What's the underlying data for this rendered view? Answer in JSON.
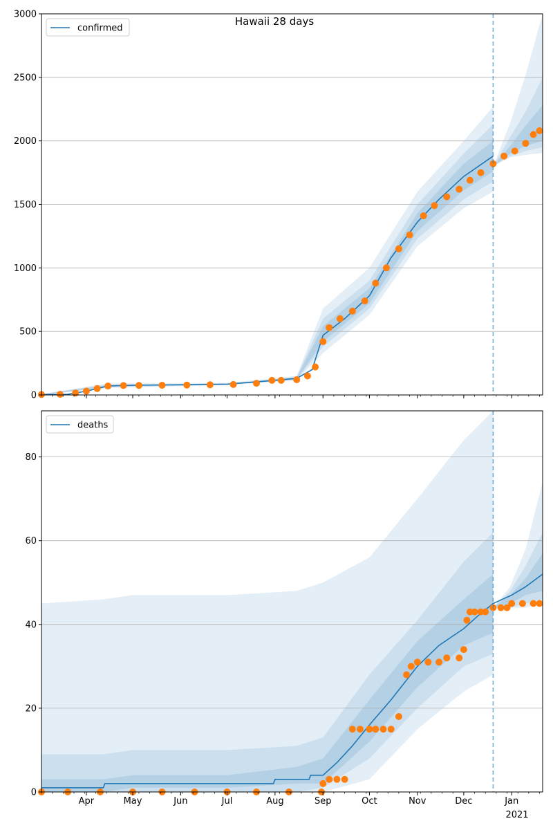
{
  "chart_data": [
    {
      "type": "line",
      "title": "Hawaii 28 days",
      "legend": {
        "label": "confirmed",
        "placement": "top-left"
      },
      "grid": "horizontal",
      "ylim": [
        0,
        3000
      ],
      "yticks": [
        0,
        500,
        1000,
        1500,
        2000,
        2500,
        3000
      ],
      "xlim": [
        "2020-03-03",
        "2021-01-21"
      ],
      "forecast_start": "2020-12-20",
      "series": [
        {
          "name": "confirmed",
          "style": "line",
          "x": [
            "2020-03-03",
            "2020-03-20",
            "2020-04-01",
            "2020-04-15",
            "2020-05-01",
            "2020-06-01",
            "2020-07-01",
            "2020-07-25",
            "2020-08-15",
            "2020-08-25",
            "2020-09-01",
            "2020-09-15",
            "2020-10-01",
            "2020-10-15",
            "2020-11-01",
            "2020-11-15",
            "2020-12-01",
            "2020-12-20"
          ],
          "y": [
            2,
            5,
            30,
            70,
            76,
            80,
            85,
            108,
            130,
            200,
            470,
            600,
            780,
            1080,
            1360,
            1540,
            1720,
            1880
          ]
        },
        {
          "style": "points",
          "x": [
            "2020-03-03",
            "2020-03-15",
            "2020-03-25",
            "2020-04-01",
            "2020-04-08",
            "2020-04-15",
            "2020-04-25",
            "2020-05-05",
            "2020-05-20",
            "2020-06-05",
            "2020-06-20",
            "2020-07-05",
            "2020-07-20",
            "2020-07-30",
            "2020-08-05",
            "2020-08-15",
            "2020-08-22",
            "2020-08-27",
            "2020-09-01",
            "2020-09-05",
            "2020-09-12",
            "2020-09-20",
            "2020-09-28",
            "2020-10-05",
            "2020-10-12",
            "2020-10-20",
            "2020-10-27",
            "2020-11-05",
            "2020-11-12",
            "2020-11-20",
            "2020-11-28",
            "2020-12-05",
            "2020-12-12",
            "2020-12-20",
            "2020-12-27",
            "2021-01-03",
            "2021-01-10",
            "2021-01-15",
            "2021-01-19"
          ],
          "y": [
            3,
            5,
            15,
            30,
            50,
            70,
            74,
            75,
            76,
            78,
            80,
            82,
            92,
            115,
            115,
            120,
            150,
            220,
            420,
            530,
            600,
            660,
            740,
            880,
            1000,
            1150,
            1260,
            1410,
            1490,
            1560,
            1620,
            1690,
            1750,
            1820,
            1880,
            1920,
            1980,
            2050,
            2080
          ]
        }
      ],
      "bands_outer": [
        {
          "x": [
            "2020-03-03",
            "2020-04-15",
            "2020-07-01",
            "2020-08-15",
            "2020-09-01",
            "2020-10-01",
            "2020-11-01",
            "2020-12-01",
            "2020-12-20"
          ],
          "lo": [
            0,
            55,
            78,
            115,
            330,
            630,
            1170,
            1470,
            1600
          ],
          "hi": [
            8,
            90,
            95,
            150,
            680,
            1000,
            1600,
            2000,
            2270
          ]
        },
        {
          "x": [
            "2020-12-20",
            "2020-12-31",
            "2021-01-10",
            "2021-01-21"
          ],
          "lo": [
            1800,
            1870,
            1890,
            1905
          ],
          "hi": [
            1800,
            2140,
            2520,
            3000
          ]
        }
      ],
      "bands_mid": [
        {
          "x": [
            "2020-03-03",
            "2020-04-15",
            "2020-07-01",
            "2020-08-15",
            "2020-09-01",
            "2020-10-01",
            "2020-11-01",
            "2020-12-01",
            "2020-12-20"
          ],
          "lo": [
            0,
            60,
            80,
            118,
            380,
            680,
            1230,
            1540,
            1680
          ],
          "hi": [
            6,
            84,
            90,
            142,
            600,
            900,
            1500,
            1900,
            2130
          ]
        },
        {
          "x": [
            "2020-12-20",
            "2020-12-31",
            "2021-01-10",
            "2021-01-21"
          ],
          "lo": [
            1800,
            1880,
            1920,
            1950
          ],
          "hi": [
            1800,
            2030,
            2230,
            2500
          ]
        }
      ],
      "bands_inner": [
        {
          "x": [
            "2020-03-03",
            "2020-04-15",
            "2020-07-01",
            "2020-08-15",
            "2020-09-01",
            "2020-10-01",
            "2020-11-01",
            "2020-12-01",
            "2020-12-20"
          ],
          "lo": [
            1,
            66,
            82,
            122,
            420,
            720,
            1290,
            1610,
            1760
          ],
          "hi": [
            4,
            78,
            88,
            136,
            540,
            840,
            1430,
            1820,
            2000
          ]
        },
        {
          "x": [
            "2020-12-20",
            "2020-12-31",
            "2021-01-10",
            "2021-01-21"
          ],
          "lo": [
            1800,
            1900,
            1960,
            2000
          ],
          "hi": [
            1800,
            1960,
            2120,
            2280
          ]
        }
      ]
    },
    {
      "type": "line",
      "legend": {
        "label": "deaths",
        "placement": "top-left"
      },
      "grid": "horizontal",
      "ylim": [
        0,
        91
      ],
      "yticks": [
        0,
        20,
        40,
        60,
        80
      ],
      "xlim": [
        "2020-03-03",
        "2021-01-21"
      ],
      "xticks": [
        {
          "date": "2020-04-01",
          "label": "Apr"
        },
        {
          "date": "2020-05-01",
          "label": "May"
        },
        {
          "date": "2020-06-01",
          "label": "Jun"
        },
        {
          "date": "2020-07-01",
          "label": "Jul"
        },
        {
          "date": "2020-08-01",
          "label": "Aug"
        },
        {
          "date": "2020-09-01",
          "label": "Sep"
        },
        {
          "date": "2020-10-01",
          "label": "Oct"
        },
        {
          "date": "2020-11-01",
          "label": "Nov"
        },
        {
          "date": "2020-12-01",
          "label": "Dec"
        },
        {
          "date": "2021-01-01",
          "label": "Jan"
        }
      ],
      "year_label": "2021",
      "forecast_start": "2020-12-20",
      "series": [
        {
          "name": "deaths",
          "style": "line",
          "x": [
            "2020-03-03",
            "2020-04-12",
            "2020-04-13",
            "2020-07-31",
            "2020-08-01",
            "2020-08-23",
            "2020-08-24",
            "2020-09-01",
            "2020-09-10",
            "2020-09-20",
            "2020-10-01",
            "2020-10-15",
            "2020-11-01",
            "2020-11-15",
            "2020-12-01",
            "2020-12-10",
            "2020-12-20",
            "2021-01-01",
            "2021-01-10",
            "2021-01-21"
          ],
          "y": [
            1,
            1,
            2,
            2,
            3,
            3,
            4,
            4,
            7,
            11,
            16,
            22,
            30,
            35,
            39,
            42,
            45,
            47,
            49,
            52
          ]
        },
        {
          "style": "points",
          "x": [
            "2020-03-03",
            "2020-03-20",
            "2020-04-10",
            "2020-05-01",
            "2020-05-20",
            "2020-06-10",
            "2020-07-01",
            "2020-07-20",
            "2020-08-10",
            "2020-08-31",
            "2020-09-01",
            "2020-09-05",
            "2020-09-10",
            "2020-09-15",
            "2020-09-20",
            "2020-09-25",
            "2020-10-01",
            "2020-10-05",
            "2020-10-10",
            "2020-10-15",
            "2020-10-20",
            "2020-10-25",
            "2020-10-28",
            "2020-11-01",
            "2020-11-08",
            "2020-11-15",
            "2020-11-20",
            "2020-11-28",
            "2020-12-01",
            "2020-12-03",
            "2020-12-05",
            "2020-12-08",
            "2020-12-12",
            "2020-12-15",
            "2020-12-20",
            "2020-12-25",
            "2020-12-29",
            "2021-01-01",
            "2021-01-08",
            "2021-01-15",
            "2021-01-19"
          ],
          "y": [
            0,
            0,
            0,
            0,
            0,
            0,
            0,
            0,
            0,
            0,
            2,
            3,
            3,
            3,
            15,
            15,
            15,
            15,
            15,
            15,
            18,
            28,
            30,
            31,
            31,
            31,
            32,
            32,
            34,
            41,
            43,
            43,
            43,
            43,
            44,
            44,
            44,
            45,
            45,
            45,
            45
          ]
        }
      ],
      "bands_outer": [
        {
          "x": [
            "2020-03-03",
            "2020-04-12",
            "2020-05-01",
            "2020-07-01",
            "2020-08-15",
            "2020-09-01",
            "2020-10-01",
            "2020-11-01",
            "2020-12-01",
            "2020-12-20"
          ],
          "lo": [
            0,
            0,
            0,
            0,
            0,
            0,
            3,
            15,
            24,
            28
          ],
          "hi": [
            45,
            46,
            47,
            47,
            48,
            50,
            56,
            70,
            84,
            91
          ]
        },
        {
          "x": [
            "2020-12-20",
            "2020-12-31",
            "2021-01-10",
            "2021-01-21"
          ],
          "lo": [
            44,
            44,
            44,
            45
          ],
          "hi": [
            44,
            49,
            58,
            74
          ]
        }
      ],
      "bands_mid": [
        {
          "x": [
            "2020-03-03",
            "2020-04-12",
            "2020-05-01",
            "2020-07-01",
            "2020-08-15",
            "2020-09-01",
            "2020-10-01",
            "2020-11-01",
            "2020-12-01",
            "2020-12-20"
          ],
          "lo": [
            0,
            0,
            0,
            0,
            0,
            1,
            8,
            20,
            30,
            33
          ],
          "hi": [
            9,
            9,
            10,
            10,
            11,
            13,
            28,
            41,
            55,
            62
          ]
        },
        {
          "x": [
            "2020-12-20",
            "2020-12-31",
            "2021-01-10",
            "2021-01-21"
          ],
          "lo": [
            44,
            44,
            45,
            46
          ],
          "hi": [
            44,
            48,
            54,
            62
          ]
        }
      ],
      "bands_inner": [
        {
          "x": [
            "2020-03-03",
            "2020-04-12",
            "2020-05-01",
            "2020-07-01",
            "2020-08-15",
            "2020-09-01",
            "2020-10-01",
            "2020-11-01",
            "2020-12-01",
            "2020-12-20"
          ],
          "lo": [
            0,
            0,
            1,
            1,
            2,
            2,
            12,
            25,
            35,
            38
          ],
          "hi": [
            3,
            3,
            4,
            4,
            6,
            8,
            22,
            36,
            46,
            52
          ]
        },
        {
          "x": [
            "2020-12-20",
            "2020-12-31",
            "2021-01-10",
            "2021-01-21"
          ],
          "lo": [
            44,
            45,
            47,
            48
          ],
          "hi": [
            44,
            47,
            51,
            57
          ]
        }
      ]
    }
  ],
  "colors": {
    "line": "#1f77b4",
    "points": "#ff7f0e",
    "band": "#1f77b4",
    "grid": "#b0b0b0"
  }
}
